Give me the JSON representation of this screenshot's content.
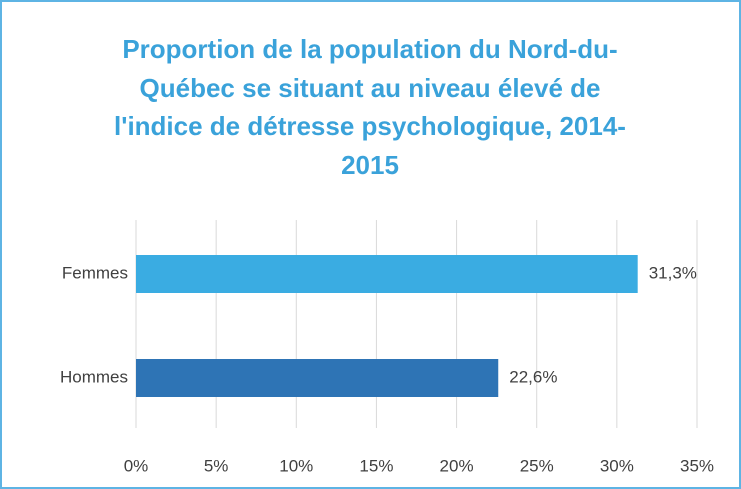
{
  "chart_data": {
    "type": "bar",
    "orientation": "horizontal",
    "title": "Proportion de la population du Nord-du-Québec se situant au niveau élevé de l'indice de détresse psychologique, 2014-2015",
    "categories": [
      "Femmes",
      "Hommes"
    ],
    "values": [
      31.3,
      22.6
    ],
    "value_labels": [
      "31,3%",
      "22,6%"
    ],
    "colors": [
      "#3aace2",
      "#2e74b5"
    ],
    "xlim": [
      0,
      35
    ],
    "xticks": [
      {
        "value": 0,
        "label": "0%"
      },
      {
        "value": 5,
        "label": "5%"
      },
      {
        "value": 10,
        "label": "10%"
      },
      {
        "value": 15,
        "label": "15%"
      },
      {
        "value": 20,
        "label": "20%"
      },
      {
        "value": 25,
        "label": "25%"
      },
      {
        "value": 30,
        "label": "30%"
      },
      {
        "value": 35,
        "label": "35%"
      }
    ],
    "grid": true
  }
}
